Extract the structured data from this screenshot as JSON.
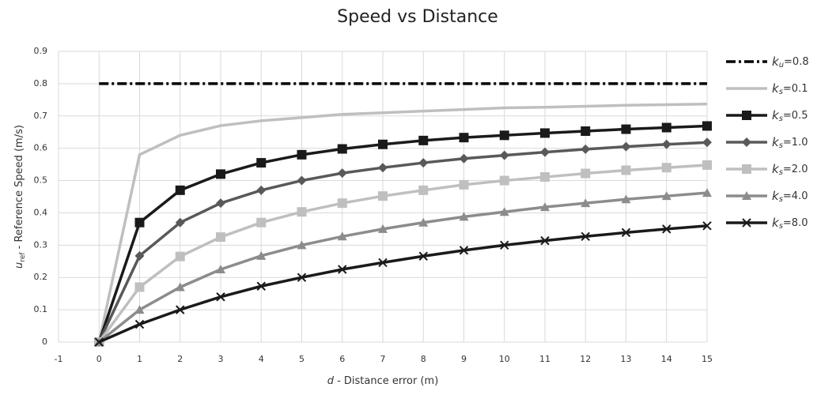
{
  "chart_data": {
    "type": "line",
    "title": "Speed vs Distance",
    "x_label": "d - Distance error (m)",
    "y_label": "uref - Reference Speed (m/s)",
    "x": [
      0,
      1,
      2,
      3,
      4,
      5,
      6,
      7,
      8,
      9,
      10,
      11,
      12,
      13,
      14,
      15
    ],
    "xlim": [
      -1,
      15
    ],
    "xticks": [
      -1,
      0,
      1,
      2,
      3,
      4,
      5,
      6,
      7,
      8,
      9,
      10,
      11,
      12,
      13,
      14,
      15
    ],
    "ylim": [
      0,
      0.9
    ],
    "yticks": [
      0,
      0.1,
      0.2,
      0.3,
      0.4,
      0.5,
      0.6,
      0.7,
      0.8,
      0.9
    ],
    "grid": true,
    "legend": "right",
    "series": [
      {
        "name": "ku=0.8",
        "color": "#000000",
        "dash": true,
        "marker": "none",
        "values": [
          0.8,
          0.8,
          0.8,
          0.8,
          0.8,
          0.8,
          0.8,
          0.8,
          0.8,
          0.8,
          0.8,
          0.8,
          0.8,
          0.8,
          0.8,
          0.8
        ]
      },
      {
        "name": "ks=0.1",
        "color": "#bfbfbf",
        "marker": "none",
        "values": [
          0,
          0.58,
          0.64,
          0.67,
          0.685,
          0.695,
          0.705,
          0.71,
          0.715,
          0.72,
          0.725,
          0.727,
          0.73,
          0.733,
          0.735,
          0.737
        ]
      },
      {
        "name": "ks=0.5",
        "color": "#1a1a1a",
        "marker": "square",
        "values": [
          0,
          0.37,
          0.47,
          0.52,
          0.555,
          0.58,
          0.598,
          0.612,
          0.624,
          0.633,
          0.64,
          0.647,
          0.653,
          0.659,
          0.664,
          0.669
        ]
      },
      {
        "name": "ks=1.0",
        "color": "#595959",
        "marker": "diamond",
        "values": [
          0,
          0.267,
          0.37,
          0.43,
          0.47,
          0.5,
          0.523,
          0.54,
          0.555,
          0.568,
          0.578,
          0.588,
          0.597,
          0.605,
          0.612,
          0.618
        ]
      },
      {
        "name": "ks=2.0",
        "color": "#bfbfbf",
        "marker": "square",
        "values": [
          0,
          0.17,
          0.265,
          0.325,
          0.37,
          0.403,
          0.43,
          0.452,
          0.47,
          0.487,
          0.5,
          0.511,
          0.522,
          0.532,
          0.54,
          0.548
        ]
      },
      {
        "name": "ks=4.0",
        "color": "#8c8c8c",
        "marker": "triangle",
        "values": [
          0,
          0.1,
          0.17,
          0.225,
          0.267,
          0.3,
          0.327,
          0.35,
          0.37,
          0.388,
          0.403,
          0.418,
          0.43,
          0.442,
          0.452,
          0.462
        ]
      },
      {
        "name": "ks=8.0",
        "color": "#1a1a1a",
        "marker": "x",
        "values": [
          0,
          0.055,
          0.1,
          0.14,
          0.173,
          0.2,
          0.225,
          0.246,
          0.266,
          0.284,
          0.3,
          0.314,
          0.327,
          0.339,
          0.35,
          0.36
        ]
      }
    ]
  }
}
